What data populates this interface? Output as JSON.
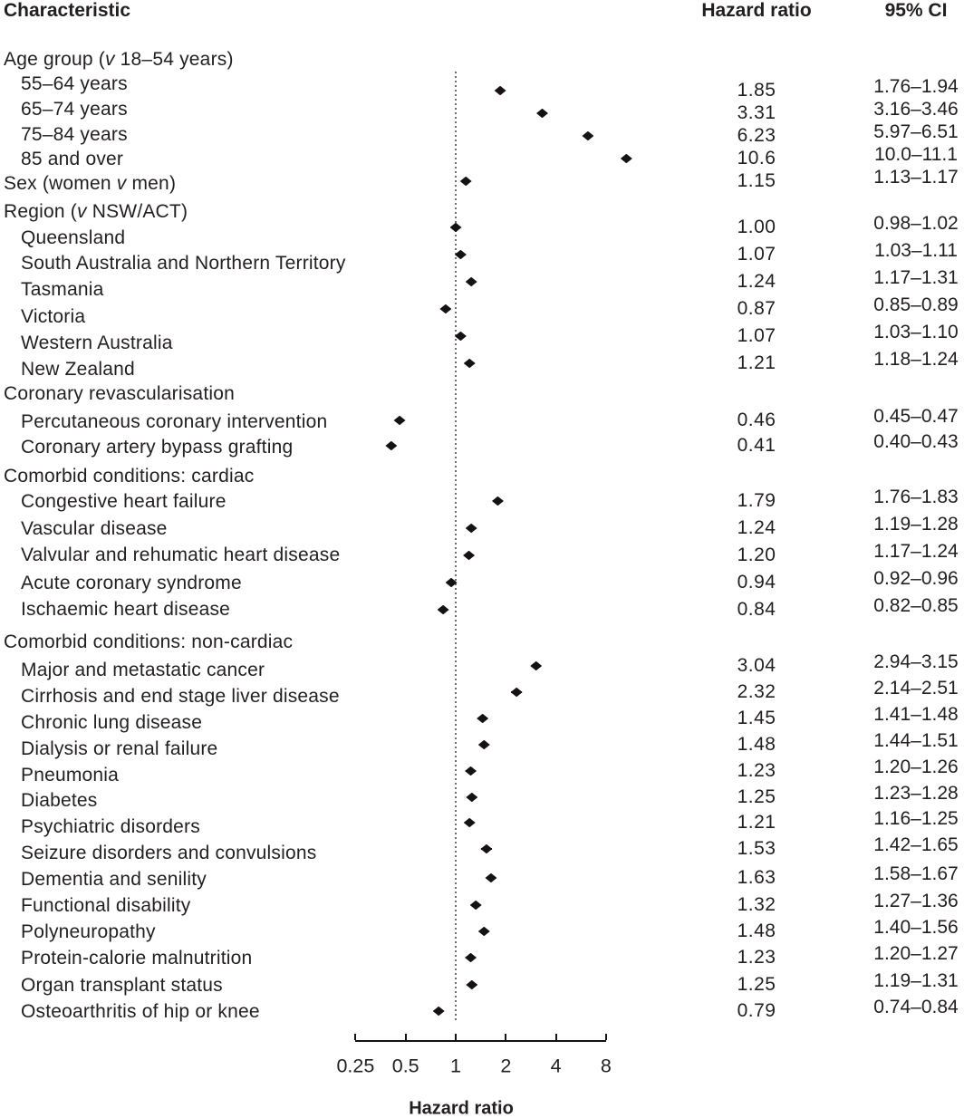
{
  "columns": {
    "characteristic": "Characteristic",
    "hazard_ratio": "Hazard ratio",
    "ci": "95% CI"
  },
  "chart_data": {
    "type": "forest",
    "x_scale": "log2",
    "x_ticks": [
      "0.25",
      "0.5",
      "1",
      "2",
      "4",
      "8"
    ],
    "x_tick_values": [
      0.25,
      0.5,
      1,
      2,
      4,
      8
    ],
    "reference_line": 1,
    "xlabel": "Hazard ratio",
    "rows": [
      {
        "header": true,
        "label_pre": "Age group (",
        "label_italic": "v",
        "label_post": " 18–54 years)"
      },
      {
        "indent": true,
        "label_pre": "55–64 years",
        "hr": 1.85,
        "ci_low": 1.76,
        "ci_high": 1.94,
        "hr_text": "1.85",
        "ci_text": "1.76–1.94"
      },
      {
        "indent": true,
        "label_pre": "65–74 years",
        "hr": 3.31,
        "ci_low": 3.16,
        "ci_high": 3.46,
        "hr_text": "3.31",
        "ci_text": "3.16–3.46"
      },
      {
        "indent": true,
        "label_pre": "75–84 years",
        "hr": 6.23,
        "ci_low": 5.97,
        "ci_high": 6.51,
        "hr_text": "6.23",
        "ci_text": "5.97–6.51"
      },
      {
        "indent": true,
        "label_pre": "85 and over",
        "hr": 10.6,
        "ci_low": 10.0,
        "ci_high": 11.1,
        "hr_text": "10.6",
        "ci_text": "10.0–11.1"
      },
      {
        "label_pre": "Sex (women ",
        "label_italic": "v",
        "label_post": " men)",
        "hr": 1.15,
        "ci_low": 1.13,
        "ci_high": 1.17,
        "hr_text": "1.15",
        "ci_text": "1.13–1.17"
      },
      {
        "header": true,
        "label_pre": "Region (",
        "label_italic": "v",
        "label_post": " NSW/ACT)"
      },
      {
        "indent": true,
        "label_pre": "Queensland",
        "hr": 1.0,
        "ci_low": 0.98,
        "ci_high": 1.02,
        "hr_text": "1.00",
        "ci_text": "0.98–1.02"
      },
      {
        "indent": true,
        "label_pre": "South Australia and Northern Territory",
        "hr": 1.07,
        "ci_low": 1.03,
        "ci_high": 1.11,
        "hr_text": "1.07",
        "ci_text": "1.03–1.11"
      },
      {
        "indent": true,
        "label_pre": "Tasmania",
        "hr": 1.24,
        "ci_low": 1.17,
        "ci_high": 1.31,
        "hr_text": "1.24",
        "ci_text": "1.17–1.31"
      },
      {
        "indent": true,
        "label_pre": "Victoria",
        "hr": 0.87,
        "ci_low": 0.85,
        "ci_high": 0.89,
        "hr_text": "0.87",
        "ci_text": "0.85–0.89"
      },
      {
        "indent": true,
        "label_pre": "Western Australia",
        "hr": 1.07,
        "ci_low": 1.03,
        "ci_high": 1.1,
        "hr_text": "1.07",
        "ci_text": "1.03–1.10"
      },
      {
        "indent": true,
        "label_pre": "New Zealand",
        "hr": 1.21,
        "ci_low": 1.18,
        "ci_high": 1.24,
        "hr_text": "1.21",
        "ci_text": "1.18–1.24"
      },
      {
        "header": true,
        "label_pre": "Coronary revascularisation"
      },
      {
        "indent": true,
        "label_pre": "Percutaneous coronary intervention",
        "hr": 0.46,
        "ci_low": 0.45,
        "ci_high": 0.47,
        "hr_text": "0.46",
        "ci_text": "0.45–0.47"
      },
      {
        "indent": true,
        "label_pre": "Coronary artery bypass grafting",
        "hr": 0.41,
        "ci_low": 0.4,
        "ci_high": 0.43,
        "hr_text": "0.41",
        "ci_text": "0.40–0.43"
      },
      {
        "header": true,
        "label_pre": "Comorbid conditions: cardiac"
      },
      {
        "indent": true,
        "label_pre": "Congestive heart failure",
        "hr": 1.79,
        "ci_low": 1.76,
        "ci_high": 1.83,
        "hr_text": "1.79",
        "ci_text": "1.76–1.83"
      },
      {
        "indent": true,
        "label_pre": "Vascular disease",
        "hr": 1.24,
        "ci_low": 1.19,
        "ci_high": 1.28,
        "hr_text": "1.24",
        "ci_text": "1.19–1.28"
      },
      {
        "indent": true,
        "label_pre": "Valvular and rehumatic heart disease",
        "hr": 1.2,
        "ci_low": 1.17,
        "ci_high": 1.24,
        "hr_text": "1.20",
        "ci_text": "1.17–1.24"
      },
      {
        "indent": true,
        "label_pre": "Acute coronary syndrome",
        "hr": 0.94,
        "ci_low": 0.92,
        "ci_high": 0.96,
        "hr_text": "0.94",
        "ci_text": "0.92–0.96"
      },
      {
        "indent": true,
        "label_pre": "Ischaemic heart disease",
        "hr": 0.84,
        "ci_low": 0.82,
        "ci_high": 0.85,
        "hr_text": "0.84",
        "ci_text": "0.82–0.85"
      },
      {
        "header": true,
        "label_pre": "Comorbid conditions: non-cardiac"
      },
      {
        "indent": true,
        "label_pre": "Major and metastatic cancer",
        "hr": 3.04,
        "ci_low": 2.94,
        "ci_high": 3.15,
        "hr_text": "3.04",
        "ci_text": "2.94–3.15"
      },
      {
        "indent": true,
        "label_pre": "Cirrhosis and end stage liver disease",
        "hr": 2.32,
        "ci_low": 2.14,
        "ci_high": 2.51,
        "hr_text": "2.32",
        "ci_text": "2.14–2.51"
      },
      {
        "indent": true,
        "label_pre": "Chronic lung disease",
        "hr": 1.45,
        "ci_low": 1.41,
        "ci_high": 1.48,
        "hr_text": "1.45",
        "ci_text": "1.41–1.48"
      },
      {
        "indent": true,
        "label_pre": "Dialysis or renal failure",
        "hr": 1.48,
        "ci_low": 1.44,
        "ci_high": 1.51,
        "hr_text": "1.48",
        "ci_text": "1.44–1.51"
      },
      {
        "indent": true,
        "label_pre": "Pneumonia",
        "hr": 1.23,
        "ci_low": 1.2,
        "ci_high": 1.26,
        "hr_text": "1.23",
        "ci_text": "1.20–1.26"
      },
      {
        "indent": true,
        "label_pre": "Diabetes",
        "hr": 1.25,
        "ci_low": 1.23,
        "ci_high": 1.28,
        "hr_text": "1.25",
        "ci_text": "1.23–1.28"
      },
      {
        "indent": true,
        "label_pre": "Psychiatric disorders",
        "hr": 1.21,
        "ci_low": 1.16,
        "ci_high": 1.25,
        "hr_text": "1.21",
        "ci_text": "1.16–1.25"
      },
      {
        "indent": true,
        "label_pre": "Seizure disorders and convulsions",
        "hr": 1.53,
        "ci_low": 1.42,
        "ci_high": 1.65,
        "hr_text": "1.53",
        "ci_text": "1.42–1.65"
      },
      {
        "indent": true,
        "label_pre": "Dementia and senility",
        "hr": 1.63,
        "ci_low": 1.58,
        "ci_high": 1.67,
        "hr_text": "1.63",
        "ci_text": "1.58–1.67"
      },
      {
        "indent": true,
        "label_pre": "Functional disability",
        "hr": 1.32,
        "ci_low": 1.27,
        "ci_high": 1.36,
        "hr_text": "1.32",
        "ci_text": "1.27–1.36"
      },
      {
        "indent": true,
        "label_pre": "Polyneuropathy",
        "hr": 1.48,
        "ci_low": 1.4,
        "ci_high": 1.56,
        "hr_text": "1.48",
        "ci_text": "1.40–1.56"
      },
      {
        "indent": true,
        "label_pre": "Protein-calorie malnutrition",
        "hr": 1.23,
        "ci_low": 1.2,
        "ci_high": 1.27,
        "hr_text": "1.23",
        "ci_text": "1.20–1.27"
      },
      {
        "indent": true,
        "label_pre": "Organ transplant status",
        "hr": 1.25,
        "ci_low": 1.19,
        "ci_high": 1.31,
        "hr_text": "1.25",
        "ci_text": "1.19–1.31"
      },
      {
        "indent": true,
        "label_pre": "Osteoarthritis of hip or knee",
        "hr": 0.79,
        "ci_low": 0.74,
        "ci_high": 0.84,
        "hr_text": "0.79",
        "ci_text": "0.74–0.84"
      }
    ]
  }
}
